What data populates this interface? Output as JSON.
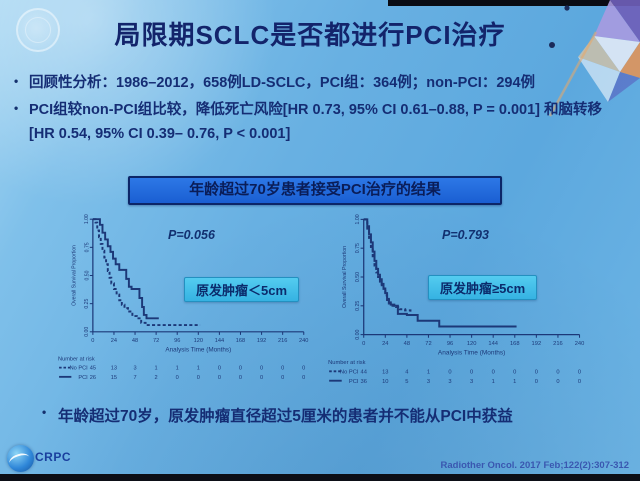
{
  "slide": {
    "title": "局限期SCLC是否都进行PCI治疗",
    "bullets": [
      "回顾性分析：1986–2012，658例LD-SCLC，PCI组：364例；non-PCI：294例",
      "PCI组较non-PCI组比较，降低死亡风险[HR 0.73, 95% CI 0.61–0.88, P = 0.001] 和脑转移 [HR 0.54, 95% CI 0.39– 0.76, P < 0.001]"
    ],
    "banner": "年龄超过70岁患者接受PCI治疗的结果",
    "conclusion": "年龄超过70岁，原发肿瘤直径超过5厘米的患者并不能从PCI中获益",
    "citation": "Radiother Oncol. 2017 Feb;122(2):307-312",
    "logo_text": "CRPC"
  },
  "colors": {
    "slide_background": "#68b0e2",
    "text_navy": "#152d74",
    "banner_blue": "#1f66d8",
    "banner_border": "#0c2668",
    "label_cyan": "#41c0ea",
    "curve_navy": "#1c3878"
  },
  "chart_data": [
    {
      "type": "line",
      "subtype": "kaplan-meier-step",
      "title": "原发肿瘤＜5cm",
      "p_value": "P=0.056",
      "xlabel": "Analysis Time (Months)",
      "ylabel": "Overall Survival Proportion",
      "xlim": [
        0,
        240
      ],
      "ylim": [
        0,
        1
      ],
      "xticks": [
        0,
        24,
        48,
        72,
        96,
        120,
        144,
        168,
        192,
        216,
        240
      ],
      "yticks": [
        0.0,
        0.25,
        0.5,
        0.75,
        1.0
      ],
      "axis_color": "#1c3878",
      "legend_position": "number-at-risk rows below x-axis",
      "series": [
        {
          "name": "No PCI",
          "style": "dashed",
          "points": [
            [
              0,
              1.0
            ],
            [
              3,
              0.97
            ],
            [
              5,
              0.9
            ],
            [
              7,
              0.84
            ],
            [
              9,
              0.78
            ],
            [
              11,
              0.72
            ],
            [
              13,
              0.66
            ],
            [
              15,
              0.6
            ],
            [
              17,
              0.54
            ],
            [
              19,
              0.48
            ],
            [
              21,
              0.43
            ],
            [
              24,
              0.38
            ],
            [
              27,
              0.33
            ],
            [
              30,
              0.28
            ],
            [
              33,
              0.24
            ],
            [
              36,
              0.21
            ],
            [
              40,
              0.18
            ],
            [
              45,
              0.14
            ],
            [
              50,
              0.12
            ],
            [
              55,
              0.08
            ],
            [
              60,
              0.06
            ],
            [
              122,
              0.06
            ]
          ]
        },
        {
          "name": "PCI",
          "style": "solid",
          "points": [
            [
              0,
              1.0
            ],
            [
              5,
              1.0
            ],
            [
              8,
              0.95
            ],
            [
              11,
              0.88
            ],
            [
              14,
              0.82
            ],
            [
              17,
              0.76
            ],
            [
              20,
              0.71
            ],
            [
              23,
              0.65
            ],
            [
              26,
              0.6
            ],
            [
              30,
              0.55
            ],
            [
              35,
              0.55
            ],
            [
              38,
              0.47
            ],
            [
              41,
              0.4
            ],
            [
              44,
              0.38
            ],
            [
              50,
              0.38
            ],
            [
              53,
              0.3
            ],
            [
              56,
              0.22
            ],
            [
              58,
              0.15
            ],
            [
              61,
              0.12
            ],
            [
              75,
              0.12
            ]
          ]
        }
      ],
      "number_at_risk": {
        "label": "Number at risk",
        "rows": [
          {
            "name": "No PCI",
            "marker": "dashed",
            "values": [
              45,
              13,
              3,
              1,
              1,
              1,
              0,
              0,
              0,
              0,
              0
            ]
          },
          {
            "name": "PCI",
            "marker": "solid",
            "values": [
              26,
              15,
              7,
              2,
              0,
              0,
              0,
              0,
              0,
              0,
              0
            ]
          }
        ]
      }
    },
    {
      "type": "line",
      "subtype": "kaplan-meier-step",
      "title": "原发肿瘤≥5cm",
      "p_value": "P=0.793",
      "xlabel": "Analysis Time (Months)",
      "ylabel": "Overall Survival Proportion",
      "xlim": [
        0,
        240
      ],
      "ylim": [
        0,
        1
      ],
      "xticks": [
        0,
        24,
        48,
        72,
        96,
        120,
        144,
        168,
        192,
        216,
        240
      ],
      "yticks": [
        0.0,
        0.25,
        0.5,
        0.75,
        1.0
      ],
      "axis_color": "#1c3878",
      "legend_position": "number-at-risk rows below x-axis",
      "series": [
        {
          "name": "No PCI",
          "style": "dashed",
          "points": [
            [
              0,
              1.0
            ],
            [
              4,
              0.92
            ],
            [
              6,
              0.84
            ],
            [
              8,
              0.76
            ],
            [
              10,
              0.68
            ],
            [
              12,
              0.6
            ],
            [
              14,
              0.54
            ],
            [
              16,
              0.5
            ],
            [
              18,
              0.46
            ],
            [
              20,
              0.42
            ],
            [
              22,
              0.38
            ],
            [
              24,
              0.34
            ],
            [
              26,
              0.3
            ],
            [
              28,
              0.27
            ],
            [
              32,
              0.25
            ],
            [
              36,
              0.24
            ],
            [
              40,
              0.22
            ],
            [
              46,
              0.21
            ],
            [
              52,
              0.2
            ]
          ]
        },
        {
          "name": "PCI",
          "style": "solid",
          "points": [
            [
              0,
              1.0
            ],
            [
              4,
              0.94
            ],
            [
              6,
              0.87
            ],
            [
              8,
              0.8
            ],
            [
              10,
              0.72
            ],
            [
              12,
              0.64
            ],
            [
              14,
              0.57
            ],
            [
              16,
              0.52
            ],
            [
              18,
              0.48
            ],
            [
              20,
              0.44
            ],
            [
              22,
              0.4
            ],
            [
              24,
              0.36
            ],
            [
              26,
              0.31
            ],
            [
              28,
              0.28
            ],
            [
              30,
              0.26
            ],
            [
              34,
              0.25
            ],
            [
              38,
              0.18
            ],
            [
              48,
              0.17
            ],
            [
              56,
              0.17
            ],
            [
              60,
              0.12
            ],
            [
              80,
              0.12
            ],
            [
              84,
              0.07
            ],
            [
              170,
              0.07
            ]
          ]
        }
      ],
      "number_at_risk": {
        "label": "Number at risk",
        "rows": [
          {
            "name": "No PCI",
            "marker": "dashed",
            "values": [
              44,
              13,
              4,
              1,
              0,
              0,
              0,
              0,
              0,
              0,
              0
            ]
          },
          {
            "name": "PCI",
            "marker": "solid",
            "values": [
              36,
              10,
              5,
              3,
              3,
              3,
              1,
              1,
              0,
              0,
              0
            ]
          }
        ]
      }
    }
  ]
}
